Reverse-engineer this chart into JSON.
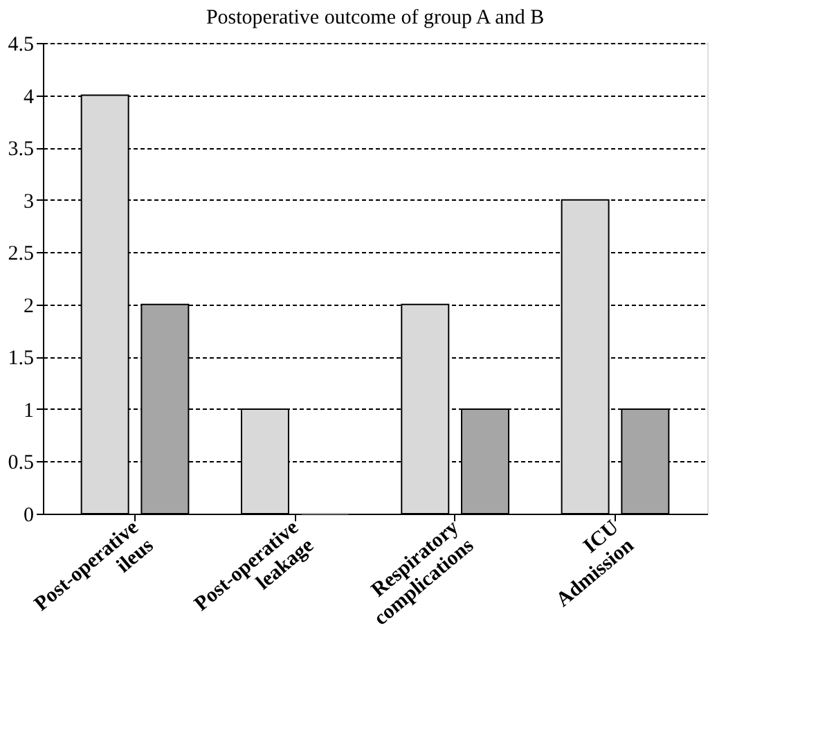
{
  "chart_data": {
    "type": "bar",
    "title": "Postoperative outcome of group A and B",
    "categories": [
      "Post-operative\nileus",
      "Post-operative\nleakage",
      "Respiratory\ncomplications",
      "ICU\nAdmission"
    ],
    "series": [
      {
        "color": "#d9d9d9",
        "values": [
          4,
          1,
          2,
          3
        ]
      },
      {
        "color": "#a6a6a6",
        "values": [
          2,
          0,
          1,
          1
        ]
      }
    ],
    "ylim": [
      0,
      4.5
    ],
    "yticks": [
      0,
      0.5,
      1,
      1.5,
      2,
      2.5,
      3,
      3.5,
      4,
      4.5
    ],
    "grid": "y",
    "legend": false
  }
}
